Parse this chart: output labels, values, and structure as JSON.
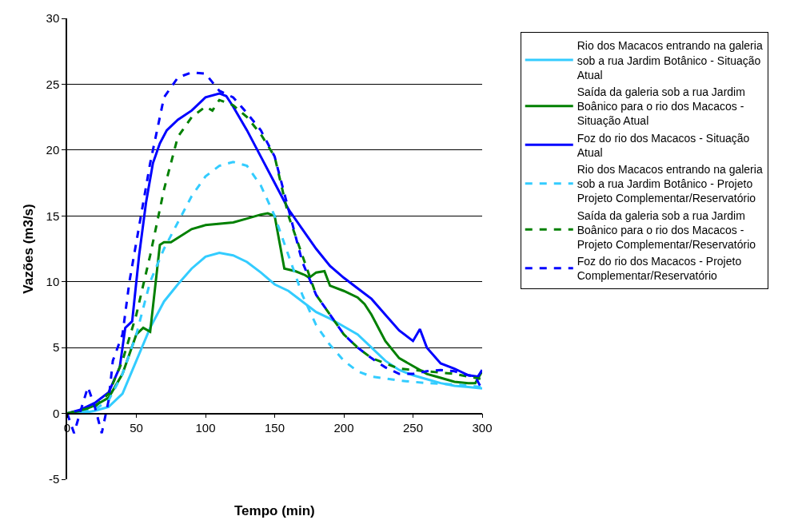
{
  "chart_data": {
    "type": "line",
    "xlabel": "Tempo (min)",
    "ylabel": "Vazões (m3/s)",
    "xlim": [
      0,
      300
    ],
    "xticks": [
      0,
      50,
      100,
      150,
      200,
      250,
      300
    ],
    "ylim": [
      -5,
      30
    ],
    "yticks": [
      -5,
      0,
      5,
      10,
      15,
      20,
      25,
      30
    ],
    "grid": "y",
    "legend": "right",
    "marker": "none",
    "series": [
      {
        "name": "Rio dos Macacos entrando na galeria sob a rua Jardim Botânico - Situação Atual",
        "color": "#33ccff",
        "line_style": "solid",
        "x": [
          0,
          10,
          20,
          30,
          40,
          50,
          60,
          70,
          80,
          90,
          100,
          110,
          120,
          130,
          140,
          150,
          160,
          170,
          180,
          190,
          200,
          210,
          220,
          230,
          240,
          250,
          260,
          270,
          280,
          290,
          300
        ],
        "values": [
          0,
          0,
          0.2,
          0.5,
          1.5,
          4,
          6.5,
          8.5,
          9.8,
          11,
          11.9,
          12.2,
          12,
          11.5,
          10.7,
          9.8,
          9.3,
          8.5,
          7.7,
          7.2,
          6.6,
          6,
          5,
          4,
          3.3,
          2.9,
          2.6,
          2.3,
          2.1,
          2,
          1.9
        ]
      },
      {
        "name": "Saída da galeria sob a rua Jardim Boânico para o rio dos Macacos - Situação Atual",
        "color": "#008000",
        "line_style": "solid",
        "x": [
          0,
          10,
          20,
          30,
          40,
          50,
          55,
          60,
          67,
          70,
          75,
          90,
          100,
          120,
          130,
          140,
          145,
          150,
          157,
          165,
          172,
          175,
          180,
          186,
          190,
          200,
          210,
          215,
          220,
          230,
          240,
          250,
          260,
          270,
          280,
          290,
          295,
          300
        ],
        "values": [
          0,
          0.2,
          0.6,
          1.2,
          3,
          6,
          6.5,
          6.2,
          12.8,
          13,
          13,
          14,
          14.3,
          14.5,
          14.8,
          15.1,
          15.2,
          15,
          11,
          10.8,
          10.5,
          10.3,
          10.7,
          10.8,
          9.7,
          9.3,
          8.8,
          8.3,
          7.5,
          5.5,
          4.2,
          3.6,
          3,
          2.7,
          2.4,
          2.3,
          2.3,
          3.2
        ]
      },
      {
        "name": "Foz do rio dos Macacos - Situação Atual",
        "color": "#0000ff",
        "line_style": "solid",
        "x": [
          0,
          10,
          20,
          30,
          38,
          42,
          47,
          52,
          57,
          62,
          67,
          72,
          80,
          90,
          100,
          110,
          115,
          120,
          130,
          140,
          150,
          160,
          170,
          180,
          190,
          200,
          210,
          220,
          230,
          240,
          250,
          255,
          260,
          270,
          280,
          290,
          297,
          300
        ],
        "values": [
          0,
          0.3,
          0.8,
          1.6,
          3.5,
          6.5,
          7,
          12,
          16,
          19,
          20.5,
          21.5,
          22.3,
          23,
          24,
          24.3,
          24.1,
          23.3,
          21.5,
          19.5,
          17.5,
          15.5,
          14,
          12.5,
          11.2,
          10.3,
          9.5,
          8.7,
          7.5,
          6.3,
          5.5,
          6.4,
          5,
          3.8,
          3.4,
          2.9,
          2.8,
          3.3
        ]
      },
      {
        "name": "Rio dos Macacos entrando na galeria sob a rua Jardim Botânico - Projeto Projeto Complementar/Reservatório",
        "color": "#33ccff",
        "line_style": "dashed",
        "x": [
          0,
          20,
          30,
          40,
          50,
          60,
          70,
          80,
          90,
          100,
          110,
          120,
          130,
          140,
          150,
          160,
          170,
          180,
          190,
          200,
          210,
          220,
          240,
          260,
          280,
          300
        ],
        "values": [
          0,
          0.3,
          1,
          3,
          6,
          10,
          12.5,
          14.5,
          16.5,
          18,
          18.8,
          19.1,
          18.8,
          17.3,
          15,
          12,
          9,
          6.7,
          5.2,
          4,
          3.2,
          2.8,
          2.5,
          2.3,
          2.2,
          2
        ]
      },
      {
        "name": "Saída da galeria sob a rua Jardim Boânico para o rio dos Macacos - Projeto Complementar/Reservatório",
        "color": "#008000",
        "line_style": "dashed",
        "x": [
          0,
          20,
          30,
          40,
          50,
          60,
          70,
          80,
          90,
          100,
          105,
          110,
          120,
          130,
          140,
          150,
          160,
          170,
          180,
          190,
          200,
          210,
          220,
          240,
          260,
          280,
          300
        ],
        "values": [
          0,
          0.5,
          1.5,
          4,
          7.5,
          12,
          17,
          21,
          22.5,
          23.3,
          23,
          23.8,
          23.4,
          22.5,
          21.2,
          19.5,
          15,
          12,
          9,
          7.5,
          6,
          5,
          4.2,
          3.4,
          3.2,
          3,
          2.6
        ]
      },
      {
        "name": "Foz do rio dos Macacos - Projeto Complementar/Reservatório",
        "color": "#0000ff",
        "line_style": "dashed",
        "x": [
          0,
          5,
          10,
          15,
          20,
          25,
          30,
          33,
          40,
          45,
          50,
          55,
          60,
          70,
          80,
          90,
          100,
          110,
          120,
          130,
          140,
          150,
          160,
          170,
          180,
          190,
          200,
          210,
          220,
          230,
          240,
          250,
          260,
          270,
          280,
          290,
          295,
          300
        ],
        "values": [
          0,
          -1.5,
          0.3,
          2,
          0.5,
          -1.5,
          1,
          4,
          6,
          10,
          13,
          16,
          19,
          24,
          25.5,
          25.9,
          25.8,
          24.5,
          24,
          22.8,
          21.5,
          19.5,
          15.5,
          11.5,
          9,
          7.5,
          6,
          5,
          4.2,
          3.5,
          3,
          3,
          3.2,
          3.3,
          3.2,
          2.9,
          2.8,
          1.8
        ]
      }
    ]
  }
}
